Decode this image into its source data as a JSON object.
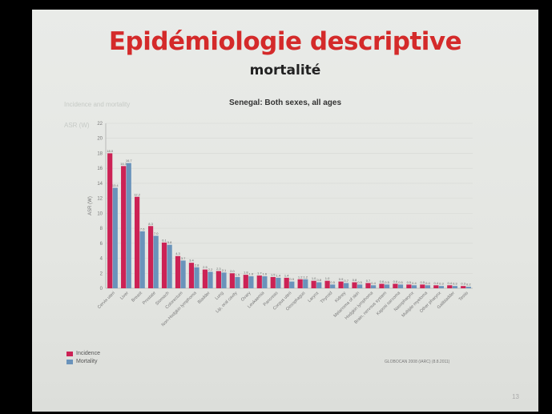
{
  "slide": {
    "title": "Epidémiologie descriptive",
    "subtitle": "mortalité",
    "faint_header": "Incidence and mortality",
    "faint_note": "ASR (W)",
    "source": "GLOBOCAN 2008 (IARC) (8.8.2011)",
    "page_number": "13"
  },
  "chart_data": {
    "type": "bar",
    "title": "Senegal: Both sexes, all ages",
    "ylabel": "ASR (W)",
    "xlabel": "",
    "ylim": [
      0,
      22
    ],
    "yticks": [
      0,
      2,
      4,
      6,
      8,
      10,
      12,
      14,
      16,
      18,
      20,
      22
    ],
    "grid": true,
    "legend_position": "bottom-left",
    "categories": [
      "Cervix uteri",
      "Liver",
      "Breast",
      "Prostate",
      "Stomach",
      "Colorectum",
      "Non-Hodgkin lymphoma",
      "Bladder",
      "Lung",
      "Lip, oral cavity",
      "Ovary",
      "Leukaemia",
      "Pancreas",
      "Corpus uteri",
      "Oesophagus",
      "Larynx",
      "Thyroid",
      "Kidney",
      "Melanoma of skin",
      "Hodgkin lymphoma",
      "Brain, nervous system",
      "Kaposi sarcoma",
      "Nasopharynx",
      "Multiple myeloma",
      "Other pharynx",
      "Gallbladder",
      "Testis"
    ],
    "series": [
      {
        "name": "Incidence",
        "color": "#cc2255",
        "values": [
          18.0,
          16.3,
          12.2,
          8.3,
          6.1,
          4.3,
          3.4,
          2.5,
          2.3,
          2.0,
          1.8,
          1.7,
          1.5,
          1.4,
          1.2,
          1.0,
          1.0,
          0.9,
          0.8,
          0.7,
          0.6,
          0.6,
          0.5,
          0.5,
          0.4,
          0.4,
          0.3
        ]
      },
      {
        "name": "Mortality",
        "color": "#6a93bb",
        "values": [
          13.4,
          16.7,
          7.6,
          7.0,
          5.8,
          3.7,
          2.8,
          2.2,
          2.1,
          1.5,
          1.6,
          1.6,
          1.4,
          0.9,
          1.2,
          0.8,
          0.5,
          0.7,
          0.5,
          0.4,
          0.5,
          0.5,
          0.4,
          0.4,
          0.3,
          0.3,
          0.2
        ]
      }
    ]
  }
}
